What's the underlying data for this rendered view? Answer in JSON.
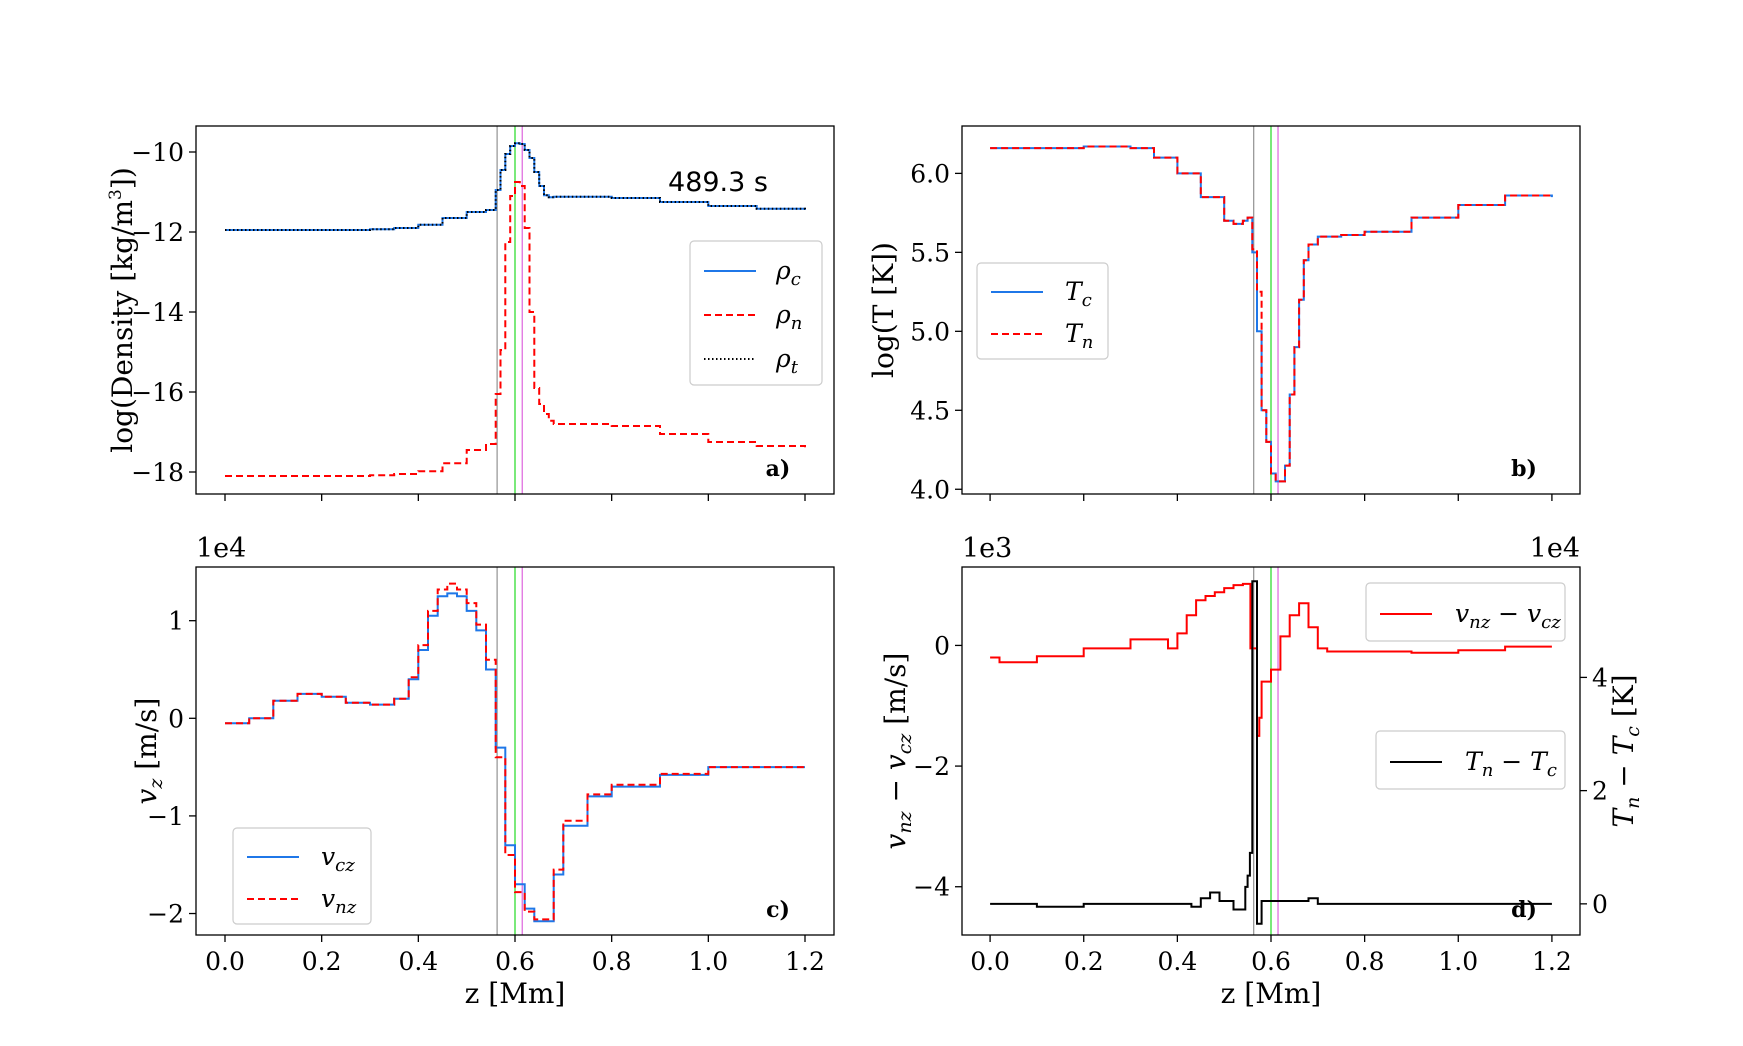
{
  "figure": {
    "colors": {
      "charged": "#1f77e8",
      "neutral": "#ff0000",
      "total": "#000000",
      "diff_temp": "#000000",
      "line_a": "#9a9a9a",
      "line_b": "#33dd33",
      "line_c": "#e070e0"
    },
    "vlines_z": [
      0.563,
      0.6,
      0.615
    ]
  },
  "chart_data": [
    {
      "id": "a",
      "type": "line",
      "panel_label": "a)",
      "annotation": "489.3 s",
      "ylabel": "log(Density [kg/m³])",
      "xlim": [
        -0.06,
        1.26
      ],
      "ylim": [
        -18.55,
        -9.35
      ],
      "yticks": [
        -18,
        -16,
        -14,
        -12,
        -10
      ],
      "ytick_labels": [
        "−18",
        "−16",
        "−14",
        "−12",
        "−10"
      ],
      "xticks": [
        0.0,
        0.2,
        0.4,
        0.6,
        0.8,
        1.0,
        1.2
      ],
      "legend": [
        {
          "label": "ρc",
          "main": "ρ",
          "sub": "c",
          "style": "solid",
          "color": "#1f77e8"
        },
        {
          "label": "ρn",
          "main": "ρ",
          "sub": "n",
          "style": "dashed",
          "color": "#ff0000"
        },
        {
          "label": "ρt",
          "main": "ρ",
          "sub": "t",
          "style": "dotted",
          "color": "#000000"
        }
      ],
      "series": [
        {
          "name": "rho_c",
          "style": "solid",
          "color": "#1f77e8",
          "x": [
            0.0,
            0.1,
            0.2,
            0.3,
            0.35,
            0.4,
            0.45,
            0.5,
            0.54,
            0.56,
            0.57,
            0.58,
            0.59,
            0.6,
            0.61,
            0.62,
            0.63,
            0.64,
            0.65,
            0.66,
            0.67,
            0.68,
            0.7,
            0.8,
            0.9,
            1.0,
            1.1,
            1.2
          ],
          "values": [
            -11.95,
            -11.95,
            -11.95,
            -11.93,
            -11.9,
            -11.82,
            -11.65,
            -11.5,
            -11.45,
            -10.95,
            -10.45,
            -10.05,
            -9.85,
            -9.78,
            -9.8,
            -9.95,
            -10.15,
            -10.5,
            -10.85,
            -11.08,
            -11.13,
            -11.12,
            -11.12,
            -11.15,
            -11.25,
            -11.35,
            -11.42,
            -11.45
          ]
        },
        {
          "name": "rho_n",
          "style": "dashed",
          "color": "#ff0000",
          "x": [
            0.0,
            0.1,
            0.2,
            0.3,
            0.35,
            0.4,
            0.45,
            0.5,
            0.54,
            0.56,
            0.57,
            0.58,
            0.59,
            0.6,
            0.61,
            0.62,
            0.63,
            0.64,
            0.65,
            0.66,
            0.67,
            0.68,
            0.7,
            0.8,
            0.9,
            1.0,
            1.1,
            1.2
          ],
          "values": [
            -18.1,
            -18.1,
            -18.1,
            -18.08,
            -18.05,
            -17.98,
            -17.78,
            -17.45,
            -17.3,
            -16.05,
            -14.95,
            -12.25,
            -11.1,
            -10.75,
            -10.85,
            -11.9,
            -14.0,
            -15.9,
            -16.3,
            -16.55,
            -16.72,
            -16.8,
            -16.8,
            -16.85,
            -17.05,
            -17.25,
            -17.35,
            -17.38
          ]
        },
        {
          "name": "rho_t",
          "style": "dotted",
          "color": "#000000",
          "x": [
            0.0,
            0.1,
            0.2,
            0.3,
            0.35,
            0.4,
            0.45,
            0.5,
            0.54,
            0.56,
            0.57,
            0.58,
            0.59,
            0.6,
            0.61,
            0.62,
            0.63,
            0.64,
            0.65,
            0.66,
            0.67,
            0.68,
            0.7,
            0.8,
            0.9,
            1.0,
            1.1,
            1.2
          ],
          "values": [
            -11.95,
            -11.95,
            -11.95,
            -11.93,
            -11.9,
            -11.82,
            -11.65,
            -11.5,
            -11.45,
            -10.95,
            -10.45,
            -10.05,
            -9.85,
            -9.78,
            -9.8,
            -9.95,
            -10.15,
            -10.5,
            -10.85,
            -11.08,
            -11.13,
            -11.12,
            -11.12,
            -11.15,
            -11.25,
            -11.35,
            -11.42,
            -11.45
          ]
        }
      ]
    },
    {
      "id": "b",
      "type": "line",
      "panel_label": "b)",
      "ylabel": "log(T [K])",
      "xlim": [
        -0.06,
        1.26
      ],
      "ylim": [
        3.97,
        6.3
      ],
      "yticks": [
        4.0,
        4.5,
        5.0,
        5.5,
        6.0
      ],
      "ytick_labels": [
        "4.0",
        "4.5",
        "5.0",
        "5.5",
        "6.0"
      ],
      "xticks": [
        0.0,
        0.2,
        0.4,
        0.6,
        0.8,
        1.0,
        1.2
      ],
      "legend": [
        {
          "label": "Tc",
          "main": "T",
          "sub": "c",
          "style": "solid",
          "color": "#1f77e8"
        },
        {
          "label": "Tn",
          "main": "T",
          "sub": "n",
          "style": "dashed",
          "color": "#ff0000"
        }
      ],
      "series": [
        {
          "name": "T_c",
          "style": "solid",
          "color": "#1f77e8",
          "x": [
            0.0,
            0.1,
            0.2,
            0.25,
            0.3,
            0.35,
            0.4,
            0.45,
            0.5,
            0.52,
            0.54,
            0.55,
            0.56,
            0.57,
            0.58,
            0.59,
            0.6,
            0.61,
            0.62,
            0.63,
            0.64,
            0.65,
            0.66,
            0.67,
            0.68,
            0.7,
            0.75,
            0.8,
            0.9,
            1.0,
            1.1,
            1.2
          ],
          "values": [
            6.16,
            6.16,
            6.17,
            6.17,
            6.16,
            6.1,
            6.0,
            5.85,
            5.7,
            5.68,
            5.7,
            5.72,
            5.5,
            5.0,
            4.5,
            4.3,
            4.1,
            4.05,
            4.05,
            4.15,
            4.6,
            4.9,
            5.2,
            5.45,
            5.55,
            5.6,
            5.61,
            5.63,
            5.72,
            5.8,
            5.86,
            5.85
          ]
        },
        {
          "name": "T_n",
          "style": "dashed",
          "color": "#ff0000",
          "x": [
            0.0,
            0.1,
            0.2,
            0.25,
            0.3,
            0.35,
            0.4,
            0.45,
            0.5,
            0.52,
            0.54,
            0.55,
            0.56,
            0.57,
            0.58,
            0.59,
            0.6,
            0.61,
            0.62,
            0.63,
            0.64,
            0.65,
            0.66,
            0.67,
            0.68,
            0.7,
            0.75,
            0.8,
            0.9,
            1.0,
            1.1,
            1.2
          ],
          "values": [
            6.16,
            6.16,
            6.17,
            6.17,
            6.16,
            6.1,
            6.0,
            5.85,
            5.7,
            5.68,
            5.7,
            5.72,
            5.52,
            5.25,
            4.5,
            4.3,
            4.1,
            4.05,
            4.05,
            4.15,
            4.6,
            4.9,
            5.2,
            5.45,
            5.55,
            5.6,
            5.61,
            5.63,
            5.72,
            5.8,
            5.86,
            5.85
          ]
        }
      ]
    },
    {
      "id": "c",
      "type": "line",
      "panel_label": "c)",
      "ylabel": "vz [m/s]",
      "offset_text": "1e4",
      "xlabel": "z [Mm]",
      "xlim": [
        -0.06,
        1.26
      ],
      "ylim": [
        -2.22,
        1.55
      ],
      "yticks": [
        -2,
        -1,
        0,
        1
      ],
      "ytick_labels": [
        "−2",
        "−1",
        "0",
        "1"
      ],
      "xticks": [
        0.0,
        0.2,
        0.4,
        0.6,
        0.8,
        1.0,
        1.2
      ],
      "xtick_labels": [
        "0.0",
        "0.2",
        "0.4",
        "0.6",
        "0.8",
        "1.0",
        "1.2"
      ],
      "legend": [
        {
          "label": "vcz",
          "main": "v",
          "sub": "cz",
          "style": "solid",
          "color": "#1f77e8"
        },
        {
          "label": "vnz",
          "main": "v",
          "sub": "nz",
          "style": "dashed",
          "color": "#ff0000"
        }
      ],
      "series": [
        {
          "name": "v_cz",
          "style": "solid",
          "color": "#1f77e8",
          "x": [
            0.0,
            0.05,
            0.1,
            0.15,
            0.2,
            0.25,
            0.3,
            0.35,
            0.38,
            0.4,
            0.42,
            0.44,
            0.46,
            0.48,
            0.5,
            0.52,
            0.54,
            0.56,
            0.58,
            0.6,
            0.62,
            0.64,
            0.66,
            0.68,
            0.7,
            0.75,
            0.8,
            0.9,
            1.0,
            1.1,
            1.2
          ],
          "values": [
            -0.05,
            0.0,
            0.18,
            0.25,
            0.22,
            0.16,
            0.14,
            0.2,
            0.4,
            0.7,
            1.05,
            1.25,
            1.28,
            1.25,
            1.1,
            0.9,
            0.5,
            -0.3,
            -1.3,
            -1.7,
            -1.95,
            -2.08,
            -2.08,
            -1.6,
            -1.1,
            -0.8,
            -0.7,
            -0.58,
            -0.5,
            -0.5,
            -0.5
          ]
        },
        {
          "name": "v_nz",
          "style": "dashed",
          "color": "#ff0000",
          "x": [
            0.0,
            0.05,
            0.1,
            0.15,
            0.2,
            0.25,
            0.3,
            0.35,
            0.38,
            0.4,
            0.42,
            0.44,
            0.46,
            0.48,
            0.5,
            0.52,
            0.54,
            0.56,
            0.58,
            0.6,
            0.62,
            0.64,
            0.66,
            0.68,
            0.7,
            0.75,
            0.8,
            0.9,
            1.0,
            1.1,
            1.2
          ],
          "values": [
            -0.05,
            0.0,
            0.18,
            0.25,
            0.22,
            0.16,
            0.14,
            0.2,
            0.42,
            0.75,
            1.1,
            1.32,
            1.38,
            1.32,
            1.18,
            0.96,
            0.6,
            -0.4,
            -1.4,
            -1.78,
            -1.98,
            -2.06,
            -2.06,
            -1.55,
            -1.05,
            -0.78,
            -0.68,
            -0.57,
            -0.5,
            -0.5,
            -0.5
          ]
        }
      ]
    },
    {
      "id": "d",
      "type": "line",
      "panel_label": "d)",
      "ylabel": "vnz − vcz [m/s]",
      "ylabel_right": "Tn − Tc [K]",
      "offset_text": "1e3",
      "offset_text_right": "1e4",
      "xlabel": "z [Mm]",
      "xlim": [
        -0.06,
        1.26
      ],
      "ylim": [
        -4.8,
        1.3
      ],
      "ylim_right": [
        -0.55,
        5.95
      ],
      "yticks": [
        -4,
        -2,
        0
      ],
      "ytick_labels": [
        "−4",
        "−2",
        "0"
      ],
      "yticks_right": [
        0,
        2,
        4
      ],
      "ytick_labels_right": [
        "0",
        "2",
        "4"
      ],
      "xticks": [
        0.0,
        0.2,
        0.4,
        0.6,
        0.8,
        1.0,
        1.2
      ],
      "xtick_labels": [
        "0.0",
        "0.2",
        "0.4",
        "0.6",
        "0.8",
        "1.0",
        "1.2"
      ],
      "legend": [
        {
          "label": "vnz − vcz",
          "main": "v",
          "sub": "nz",
          "main2": "v",
          "sub2": "cz",
          "style": "solid",
          "color": "#ff0000"
        }
      ],
      "legend2": [
        {
          "label": "Tn − Tc",
          "main": "T",
          "sub": "n",
          "main2": "T",
          "sub2": "c",
          "style": "solid",
          "color": "#000000"
        }
      ],
      "series": [
        {
          "name": "dv",
          "axis": "left",
          "style": "solid",
          "color": "#ff0000",
          "x": [
            0.0,
            0.02,
            0.1,
            0.2,
            0.3,
            0.34,
            0.38,
            0.4,
            0.42,
            0.44,
            0.46,
            0.48,
            0.5,
            0.52,
            0.54,
            0.555,
            0.556,
            0.56,
            0.57,
            0.575,
            0.58,
            0.6,
            0.62,
            0.64,
            0.66,
            0.68,
            0.7,
            0.72,
            0.8,
            0.9,
            1.0,
            1.1,
            1.2
          ],
          "values": [
            -0.2,
            -0.28,
            -0.18,
            -0.05,
            0.1,
            0.1,
            -0.05,
            0.2,
            0.5,
            0.75,
            0.82,
            0.88,
            0.95,
            1.0,
            1.02,
            1.02,
            -0.05,
            -0.05,
            -1.5,
            -1.2,
            -0.6,
            -0.4,
            0.15,
            0.5,
            0.7,
            0.3,
            -0.05,
            -0.1,
            -0.1,
            -0.12,
            -0.08,
            -0.02,
            -0.02
          ]
        },
        {
          "name": "dT",
          "axis": "right",
          "style": "solid",
          "color": "#000000",
          "x": [
            0.0,
            0.1,
            0.2,
            0.3,
            0.4,
            0.43,
            0.45,
            0.47,
            0.49,
            0.52,
            0.54,
            0.545,
            0.55,
            0.555,
            0.56,
            0.565,
            0.57,
            0.575,
            0.58,
            0.6,
            0.65,
            0.68,
            0.7,
            0.8,
            0.9,
            1.0,
            1.2
          ],
          "values": [
            0.0,
            -0.05,
            0.0,
            0.0,
            0.0,
            -0.05,
            0.1,
            0.2,
            0.05,
            -0.1,
            -0.1,
            0.3,
            0.5,
            0.9,
            5.7,
            5.7,
            -0.35,
            -0.35,
            0.05,
            0.05,
            0.05,
            0.1,
            0.0,
            0.0,
            0.0,
            0.0,
            0.0
          ]
        }
      ]
    }
  ]
}
